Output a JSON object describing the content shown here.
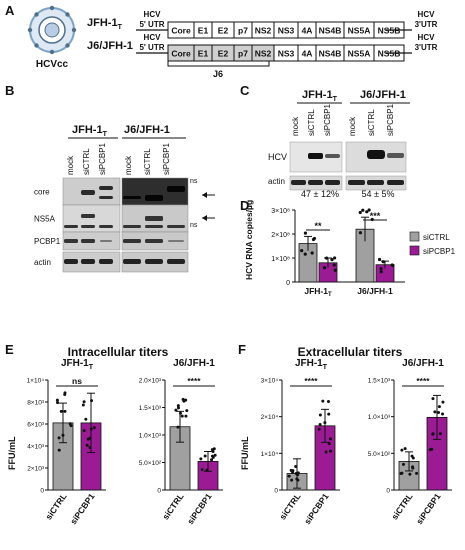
{
  "panels": {
    "A": {
      "letter": "A",
      "virion_label": "HCVcc",
      "rows": [
        {
          "name": "JFH-1",
          "name_sub": "T",
          "utr5_l1": "HCV",
          "utr5_l2": "5' UTR",
          "genes": [
            "Core",
            "E1",
            "E2",
            "p7",
            "NS2",
            "NS3",
            "4A",
            "NS4B",
            "NS5A",
            "NS5B"
          ],
          "utr3_l1": "HCV",
          "utr3_l2": "3'UTR"
        },
        {
          "name": "J6/JFH-1",
          "name_sub": "",
          "utr5_l1": "HCV",
          "utr5_l2": "5' UTR",
          "genes": [
            "Core",
            "E1",
            "E2",
            "p7",
            "NS2",
            "NS3",
            "4A",
            "NS4B",
            "NS5A",
            "NS5B"
          ],
          "utr3_l1": "HCV",
          "utr3_l2": "3'UTR"
        }
      ],
      "bracket_label": "J6"
    },
    "B": {
      "letter": "B",
      "group1": "JFH-1",
      "group1_sub": "T",
      "group2": "J6/JFH-1",
      "lanes": [
        "mock",
        "siCTRL",
        "siPCBP1",
        "mock",
        "siCTRL",
        "siPCBP1"
      ],
      "rows": [
        "core",
        "NS5A",
        "PCBP1",
        "actin"
      ],
      "ns_label": "ns"
    },
    "C": {
      "letter": "C",
      "group1": "JFH-1",
      "group1_sub": "T",
      "group2": "J6/JFH-1",
      "lanes": [
        "mock",
        "siCTRL",
        "siPCBP1",
        "mock",
        "siCTRL",
        "siPCBP1"
      ],
      "rows": [
        "HCV",
        "actin"
      ],
      "quant1": "47 ± 12%",
      "quant2": "54 ± 5%"
    },
    "D": {
      "letter": "D",
      "chart_data": {
        "type": "bar",
        "ylabel": "HCV RNA copies/µg",
        "categories": [
          "JFH-1T",
          "J6/JFH-1"
        ],
        "yticks": [
          "0",
          "1×10⁸",
          "2×10⁸",
          "3×10⁸"
        ],
        "ylim": [
          0,
          300000000
        ],
        "series": [
          {
            "name": "siCTRL",
            "color": "#a0a0a0",
            "values": [
              160000000,
              220000000
            ],
            "errors": [
              30000000,
              50000000
            ]
          },
          {
            "name": "siPCBP1",
            "color": "#9b1b95",
            "values": [
              80000000,
              72000000
            ],
            "errors": [
              20000000,
              15000000
            ]
          }
        ],
        "significance": [
          "**",
          "***"
        ]
      }
    },
    "E": {
      "letter": "E",
      "title": "Intracellular titers",
      "ylabel": "FFU/mL",
      "charts": [
        {
          "title": "JFH-1",
          "title_sub": "T",
          "chart_data": {
            "type": "bar",
            "categories": [
              "siCTRL",
              "siPCBP1"
            ],
            "values": [
              6100,
              6100
            ],
            "errors": [
              1800,
              2700
            ],
            "ylim": [
              0,
              10000
            ],
            "yticks": [
              "0",
              "2×10³",
              "4×10³",
              "6×10³",
              "8×10³",
              "1×10⁴"
            ],
            "significance": "ns",
            "colors": [
              "#a0a0a0",
              "#9b1b95"
            ]
          }
        },
        {
          "title": "J6/JFH-1",
          "title_sub": "",
          "chart_data": {
            "type": "bar",
            "categories": [
              "siCTRL",
              "siPCBP1"
            ],
            "values": [
              1150,
              520
            ],
            "errors": [
              280,
              180
            ],
            "ylim": [
              0,
              2000
            ],
            "yticks": [
              "0",
              "5.0×10²",
              "1.0×10³",
              "1.5×10³",
              "2.0×10³"
            ],
            "significance": "****",
            "colors": [
              "#a0a0a0",
              "#9b1b95"
            ]
          }
        }
      ]
    },
    "F": {
      "letter": "F",
      "title": "Extracellular titers",
      "ylabel": "FFU/mL",
      "charts": [
        {
          "title": "JFH-1",
          "title_sub": "T",
          "chart_data": {
            "type": "bar",
            "categories": [
              "siCTRL",
              "siPCBP1"
            ],
            "values": [
              4500,
              17500
            ],
            "errors": [
              4000,
              4500
            ],
            "ylim": [
              0,
              30000
            ],
            "yticks": [
              "0",
              "1×10⁴",
              "2×10⁴",
              "3×10⁴"
            ],
            "significance": "****",
            "colors": [
              "#a0a0a0",
              "#9b1b95"
            ]
          }
        },
        {
          "title": "J6/JFH-1",
          "title_sub": "",
          "chart_data": {
            "type": "bar",
            "categories": [
              "siCTRL",
              "siPCBP1"
            ],
            "values": [
              390,
              990
            ],
            "errors": [
              130,
              300
            ],
            "ylim": [
              0,
              1500
            ],
            "yticks": [
              "0",
              "5.0×10²",
              "1.0×10³",
              "1.5×10³"
            ],
            "significance": "****",
            "colors": [
              "#a0a0a0",
              "#9b1b95"
            ]
          }
        }
      ]
    }
  }
}
